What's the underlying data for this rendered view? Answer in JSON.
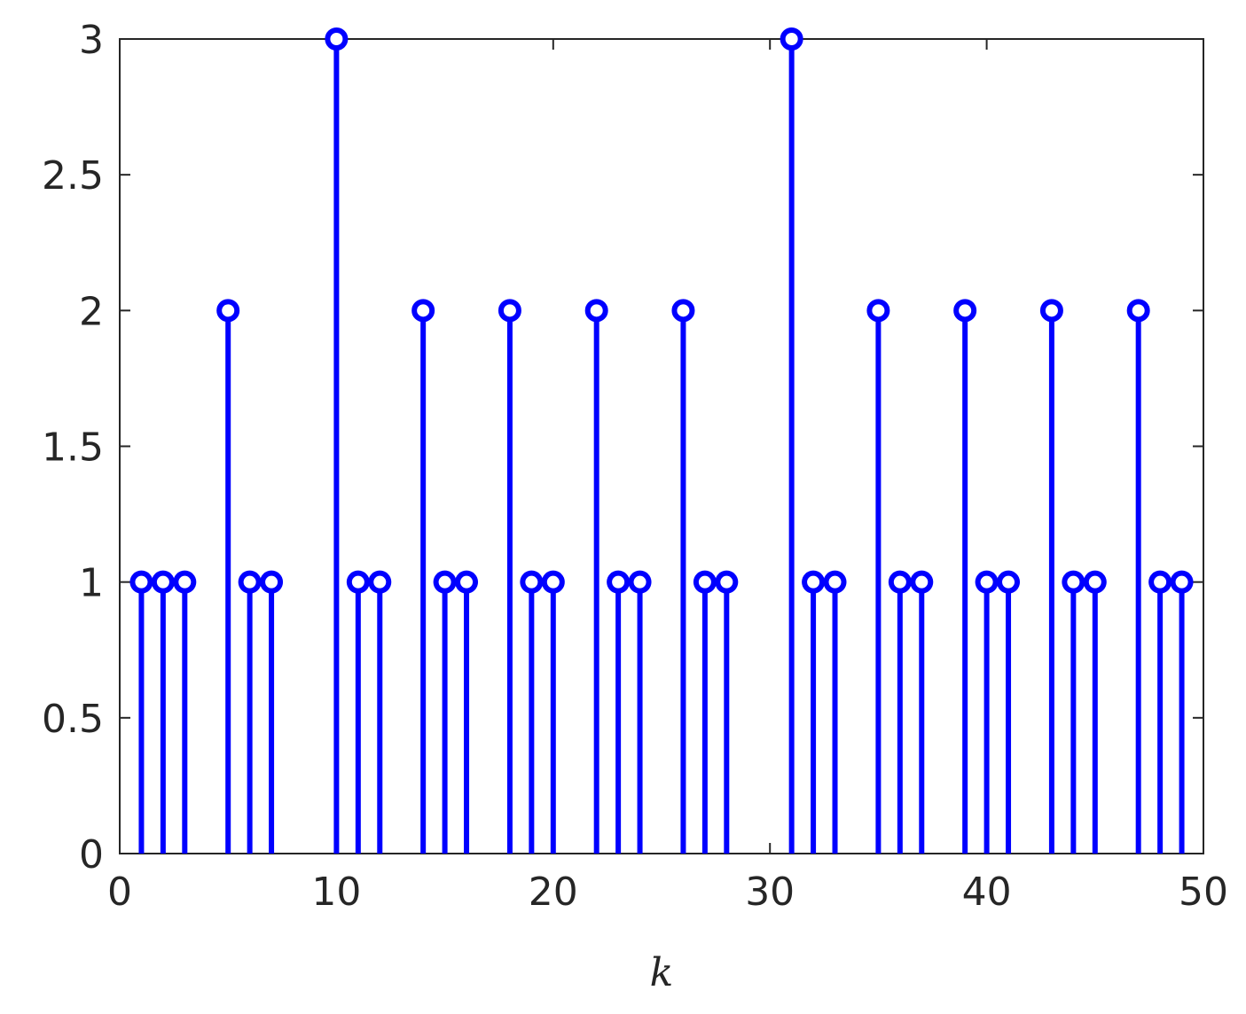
{
  "chart_data": {
    "type": "stem",
    "x_label": "k",
    "color": "#0000ff",
    "x": [
      1,
      2,
      3,
      5,
      6,
      7,
      10,
      11,
      12,
      14,
      15,
      16,
      18,
      19,
      20,
      22,
      23,
      24,
      26,
      27,
      28,
      31,
      32,
      33,
      35,
      36,
      37,
      39,
      40,
      41,
      43,
      44,
      45,
      47,
      48,
      49
    ],
    "values": [
      1,
      1,
      1,
      2,
      1,
      1,
      3,
      1,
      1,
      2,
      1,
      1,
      2,
      1,
      1,
      2,
      1,
      1,
      2,
      1,
      1,
      3,
      1,
      1,
      2,
      1,
      1,
      2,
      1,
      1,
      2,
      1,
      1,
      2,
      1,
      1
    ],
    "xlim": [
      0,
      50
    ],
    "xticks": [
      0,
      10,
      20,
      30,
      40,
      50
    ],
    "ylim": [
      0,
      3
    ],
    "yticks": [
      0,
      0.5,
      1,
      1.5,
      2,
      2.5,
      3
    ]
  }
}
